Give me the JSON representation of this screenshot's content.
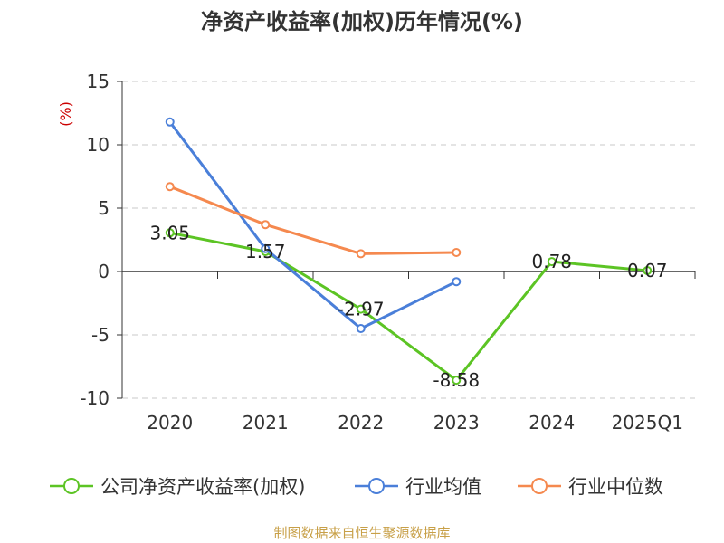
{
  "chart_data": {
    "type": "line",
    "title": "净资产收益率(加权)历年情况(%)",
    "ylabel": "(%)",
    "xlabel": "",
    "categories": [
      "2020",
      "2021",
      "2022",
      "2023",
      "2024",
      "2025Q1"
    ],
    "ylim": [
      -10,
      15
    ],
    "yticks": [
      15,
      10,
      5,
      0,
      -5,
      -10
    ],
    "grid": true,
    "legend_position": "bottom",
    "series": [
      {
        "name": "公司净资产收益率(加权)",
        "color": "#5cc424",
        "values": [
          3.05,
          1.57,
          -2.97,
          -8.58,
          0.78,
          0.07
        ],
        "labels": [
          "3.05",
          "1.57",
          "-2.97",
          "-8.58",
          "0.78",
          "0.07"
        ]
      },
      {
        "name": "行业均值",
        "color": "#4a7fd9",
        "values": [
          11.8,
          1.8,
          -4.5,
          -0.8,
          null,
          null
        ]
      },
      {
        "name": "行业中位数",
        "color": "#f5894f",
        "values": [
          6.7,
          3.7,
          1.4,
          1.5,
          null,
          null
        ]
      }
    ]
  },
  "source": "制图数据来自恒生聚源数据库"
}
